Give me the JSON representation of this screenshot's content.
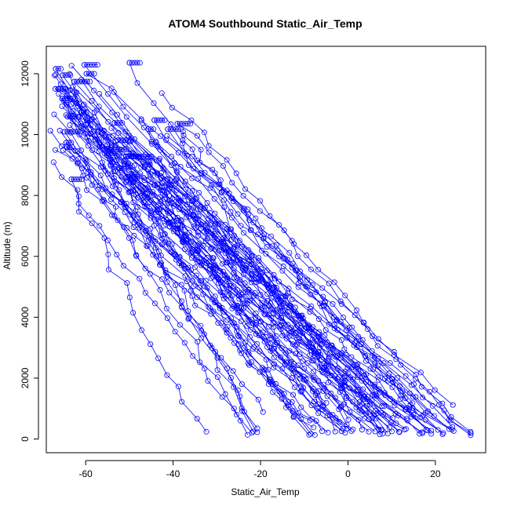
{
  "chart_data": {
    "type": "line",
    "title": "ATOM4 Southbound Static_Air_Temp",
    "xlabel": "Static_Air_Temp",
    "ylabel": "Altitude (m)",
    "xlim": [
      -69,
      31.5
    ],
    "ylim": [
      -450,
      12900
    ],
    "xticks": [
      -60,
      -40,
      -20,
      0,
      20
    ],
    "yticks": [
      0,
      2000,
      4000,
      6000,
      8000,
      10000,
      12000
    ],
    "marker": "open-circle",
    "grid": false,
    "legend": "none",
    "color": "#0000ff",
    "profile_count": 70,
    "sample_profiles": [
      {
        "surface_temp": -33,
        "surface_alt": 200,
        "top_temp": -64,
        "top_alt": 8500
      },
      {
        "surface_temp": -9,
        "surface_alt": 200,
        "top_temp": -66,
        "top_alt": 11900
      },
      {
        "surface_temp": 5,
        "surface_alt": 200,
        "top_temp": -50,
        "top_alt": 12350
      },
      {
        "surface_temp": 28,
        "surface_alt": 200,
        "top_temp": -38,
        "top_alt": 10400
      }
    ]
  }
}
